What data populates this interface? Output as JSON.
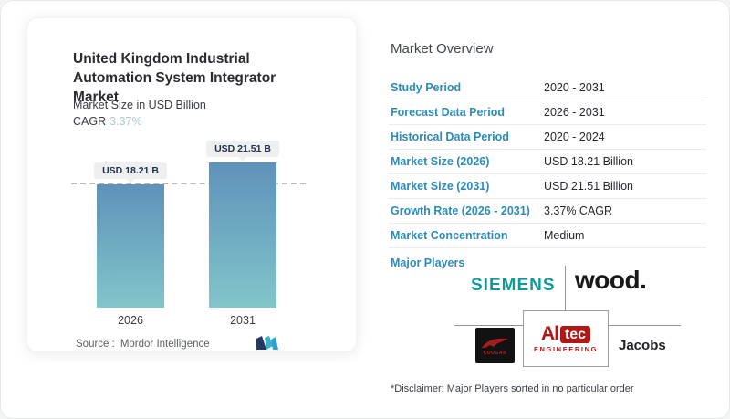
{
  "chart_card": {
    "title": "United Kingdom Industrial Automation System Integrator Market",
    "subtitle": "Market Size in USD Billion",
    "cagr_label": "CAGR",
    "cagr_value": "3.37%",
    "source_label": "Source :",
    "source_value": "Mordor Intelligence",
    "logo_name": "mordor-intelligence-logo"
  },
  "chart_data": {
    "type": "bar",
    "title": "United Kingdom Industrial Automation System Integrator Market",
    "subtitle": "Market Size in USD Billion",
    "unit": "USD Billion",
    "categories": [
      "2026",
      "2031"
    ],
    "values": [
      18.21,
      21.51
    ],
    "bar_labels": [
      "USD 18.21 B",
      "USD 21.51 B"
    ],
    "cagr_percent": 3.37,
    "baseline_dashed_at_value": 18.21,
    "grid": false,
    "bar_gradient_top": "#5f92ba",
    "bar_gradient_bottom": "#82c5ca"
  },
  "overview": {
    "heading": "Market Overview",
    "rows": [
      {
        "label": "Study Period",
        "value": "2020 - 2031"
      },
      {
        "label": "Forecast Data Period",
        "value": "2026 - 2031"
      },
      {
        "label": "Historical Data Period",
        "value": "2020 - 2024"
      },
      {
        "label": "Market Size (2026)",
        "value": "USD 18.21 Billion"
      },
      {
        "label": "Market Size (2031)",
        "value": "USD 21.51 Billion"
      },
      {
        "label": "Growth Rate (2026 - 2031)",
        "value": "3.37% CAGR"
      },
      {
        "label": "Market Concentration",
        "value": "Medium"
      }
    ],
    "major_players_label": "Major Players",
    "players": [
      {
        "name": "Siemens",
        "display": "SIEMENS"
      },
      {
        "name": "Wood",
        "display": "wood."
      },
      {
        "name": "Cougar",
        "display": "COUGAR"
      },
      {
        "name": "Altec Engineering",
        "display_parts": [
          "Al",
          "tec",
          "ENGINEERING"
        ]
      },
      {
        "name": "Jacobs",
        "display": "Jacobs"
      }
    ],
    "disclaimer": "*Disclaimer: Major Players sorted in no particular order"
  },
  "colors": {
    "accent_blue_label": "#2b8cba",
    "cagr_value_blue": "#a9c9d9",
    "siemens_teal": "#109a97",
    "altec_red": "#ae1917",
    "bar_top": "#5f92ba",
    "bar_bottom": "#82c5ca",
    "pill_bg": "#edf0ee"
  }
}
